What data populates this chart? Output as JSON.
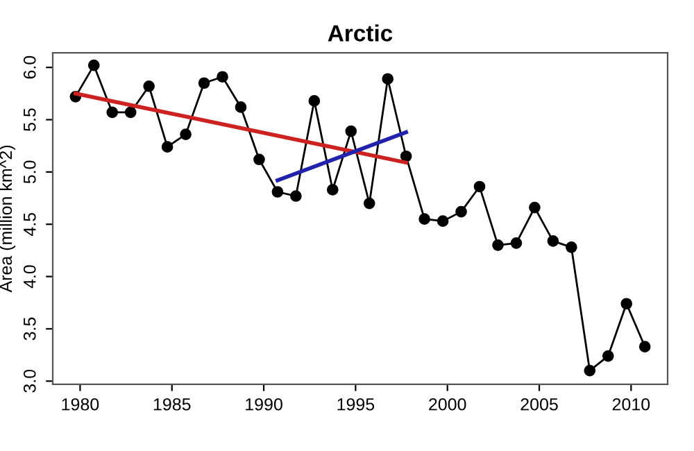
{
  "chart_data": {
    "type": "line",
    "title": "Arctic",
    "ylabel": "Area (million km^2)",
    "xlim": [
      1978.51,
      2011.99
    ],
    "ylim": [
      2.97,
      6.14
    ],
    "xticks": [
      1980,
      1985,
      1990,
      1995,
      2000,
      2005,
      2010
    ],
    "yticks": [
      {
        "value": 3,
        "label": "3.0"
      },
      {
        "value": 3.5,
        "label": "3.5"
      },
      {
        "value": 4,
        "label": "4.0"
      },
      {
        "value": 4.5,
        "label": "4.5"
      },
      {
        "value": 5,
        "label": "5.0"
      },
      {
        "value": 5.5,
        "label": "5.5"
      },
      {
        "value": 6,
        "label": "6.0"
      }
    ],
    "grid": false,
    "legend": false,
    "series": [
      {
        "color": "#000000",
        "marker": "circle",
        "x": [
          1979.75,
          1980.75,
          1981.75,
          1982.75,
          1983.75,
          1984.75,
          1985.75,
          1986.75,
          1987.75,
          1988.75,
          1989.75,
          1990.75,
          1991.75,
          1992.75,
          1993.75,
          1994.75,
          1995.75,
          1996.75,
          1997.75,
          1998.75,
          1999.75,
          2000.75,
          2001.75,
          2002.75,
          2003.75,
          2004.75,
          2005.75,
          2006.75,
          2007.75,
          2008.75,
          2009.75,
          2010.75
        ],
        "values": [
          5.72,
          6.02,
          5.57,
          5.57,
          5.82,
          5.24,
          5.36,
          5.85,
          5.91,
          5.62,
          5.12,
          4.81,
          4.77,
          5.68,
          4.83,
          5.39,
          4.7,
          5.89,
          5.15,
          4.55,
          4.53,
          4.62,
          4.86,
          4.3,
          4.32,
          4.66,
          4.34,
          4.28,
          3.1,
          3.24,
          3.74,
          3.33
        ]
      },
      {
        "color": "#cc2222",
        "marker": "none",
        "x": [
          1979.75,
          1997.75
        ],
        "values": [
          5.75,
          5.09
        ]
      },
      {
        "color": "#2222aa",
        "marker": "none",
        "x": [
          1990.75,
          1997.75
        ],
        "values": [
          4.92,
          5.38
        ]
      }
    ]
  }
}
